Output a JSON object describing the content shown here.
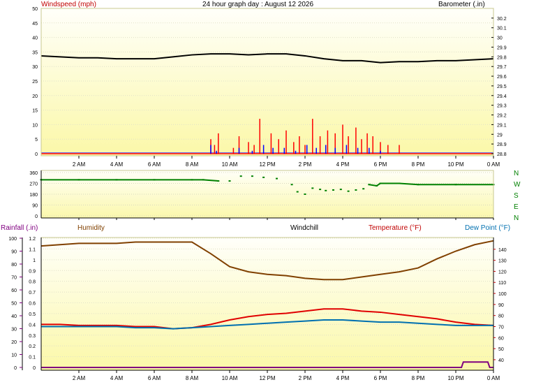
{
  "chart_data": [
    {
      "type": "line",
      "title": "24 hour graph day : August 12 2026",
      "ylabel": "Windspeed (mph)",
      "y2label": "Barometer (.in)",
      "ylim": [
        0,
        50
      ],
      "y2lim": [
        28.8,
        30.3
      ],
      "yticks": [
        "0",
        "5",
        "10",
        "15",
        "20",
        "25",
        "30",
        "35",
        "40",
        "45",
        "50"
      ],
      "y2ticks": [
        "28.8",
        "28.9",
        "29",
        "29.1",
        "29.2",
        "29.3",
        "29.4",
        "29.5",
        "29.6",
        "29.7",
        "29.8",
        "29.9",
        "30",
        "30.1",
        "30.2"
      ],
      "xticks": [
        "2 AM",
        "4 AM",
        "6 AM",
        "8 AM",
        "10 AM",
        "12 PM",
        "2 PM",
        "4 PM",
        "6 PM",
        "8 PM",
        "10 PM",
        "0 AM"
      ],
      "grid": true,
      "series": [
        {
          "name": "Barometer",
          "color": "#000000",
          "axis": "right",
          "x": [
            0,
            1,
            2,
            3,
            4,
            5,
            6,
            7,
            8,
            9,
            10,
            11,
            12,
            13,
            14,
            15,
            16,
            17,
            18,
            19,
            20,
            21,
            22,
            23,
            24
          ],
          "values": [
            29.81,
            29.8,
            29.79,
            29.79,
            29.78,
            29.78,
            29.78,
            29.8,
            29.82,
            29.83,
            29.83,
            29.82,
            29.83,
            29.83,
            29.81,
            29.78,
            29.76,
            29.76,
            29.74,
            29.75,
            29.75,
            29.76,
            29.76,
            29.77,
            29.78
          ]
        },
        {
          "name": "Wind gust",
          "color": "#ff0000",
          "axis": "left",
          "x": [
            9.0,
            9.2,
            9.4,
            10.2,
            10.5,
            11.0,
            11.3,
            11.6,
            12.2,
            12.6,
            13.0,
            13.4,
            13.7,
            14.0,
            14.4,
            14.8,
            15.2,
            15.6,
            16.0,
            16.3,
            16.7,
            17.0,
            17.3,
            17.6,
            18.0,
            18.4,
            19.0
          ],
          "values": [
            5,
            3,
            7,
            2,
            6,
            4,
            3,
            12,
            7,
            5,
            8,
            4,
            6,
            3,
            12,
            6,
            8,
            7,
            10,
            6,
            9,
            5,
            7,
            6,
            4,
            3,
            3
          ]
        },
        {
          "name": "Wind average",
          "color": "#0000ff",
          "axis": "left",
          "x": [
            9.0,
            9.3,
            10.5,
            11.2,
            11.8,
            12.3,
            12.9,
            13.5,
            14.1,
            14.6,
            15.1,
            15.6,
            16.2,
            16.8,
            17.4,
            18.0
          ],
          "values": [
            3,
            1,
            2,
            1,
            3,
            2,
            2,
            1,
            3,
            2,
            3,
            2,
            3,
            2,
            2,
            1
          ]
        }
      ]
    },
    {
      "type": "scatter",
      "ylim": [
        0,
        360
      ],
      "yticks": [
        "0",
        "90",
        "180",
        "270",
        "360"
      ],
      "compass": [
        "N",
        "W",
        "S",
        "E",
        "N"
      ],
      "series": [
        {
          "name": "Wind direction",
          "color": "#008000",
          "x": [
            0,
            2,
            4,
            6,
            8,
            8.6,
            9.4,
            10.0,
            10.6,
            11.2,
            11.8,
            12.5,
            13.3,
            13.6,
            14.0,
            14.4,
            14.8,
            15.1,
            15.5,
            15.9,
            16.3,
            16.7,
            17.1,
            17.4,
            17.8,
            18.0,
            19.0,
            20.0,
            22.0,
            24.0
          ],
          "values": [
            300,
            300,
            300,
            300,
            300,
            300,
            290,
            290,
            330,
            330,
            320,
            310,
            260,
            200,
            180,
            230,
            220,
            210,
            215,
            220,
            205,
            215,
            225,
            260,
            250,
            270,
            270,
            260,
            260,
            260
          ]
        }
      ]
    },
    {
      "type": "line",
      "labels": {
        "rainfall": "Rainfall (.in)",
        "humidity": "Humidity",
        "windchill": "Windchill",
        "temperature": "Temperature (°F)",
        "dewpoint": "Dew Point (°F)"
      },
      "y_humidity_ticks": [
        "0",
        "10",
        "20",
        "30",
        "40",
        "50",
        "60",
        "70",
        "80",
        "90",
        "100"
      ],
      "y_rain_ticks": [
        "0",
        "0.1",
        "0.2",
        "0.3",
        "0.4",
        "0.5",
        "0.6",
        "0.7",
        "0.8",
        "0.9",
        "1",
        "1.1",
        "1.2"
      ],
      "y_temp_ticks": [
        "40",
        "50",
        "60",
        "70",
        "80",
        "90",
        "100",
        "110",
        "120",
        "130",
        "140"
      ],
      "humidity_lim": [
        0,
        100
      ],
      "rain_lim": [
        0,
        1.2
      ],
      "temp_lim": [
        33,
        150
      ],
      "xticks": [
        "2 AM",
        "4 AM",
        "6 AM",
        "8 AM",
        "10 AM",
        "12 PM",
        "2 PM",
        "4 PM",
        "6 PM",
        "8 PM",
        "10 PM",
        "0 AM"
      ],
      "series": [
        {
          "name": "Humidity",
          "color": "#804000",
          "axis": "humidity",
          "x": [
            0,
            1,
            2,
            3,
            4,
            5,
            6,
            7,
            8,
            9,
            10,
            11,
            12,
            13,
            14,
            15,
            16,
            17,
            18,
            19,
            20,
            21,
            22,
            23,
            24
          ],
          "values": [
            94,
            95,
            96,
            96,
            96,
            97,
            97,
            97,
            97,
            88,
            78,
            74,
            72,
            71,
            69,
            68,
            68,
            70,
            72,
            74,
            77,
            84,
            90,
            95,
            98
          ]
        },
        {
          "name": "Temperature",
          "color": "#e00000",
          "axis": "temp",
          "x": [
            0,
            1,
            2,
            3,
            4,
            5,
            6,
            7,
            8,
            9,
            10,
            11,
            12,
            13,
            14,
            15,
            16,
            17,
            18,
            19,
            20,
            21,
            22,
            23,
            24
          ],
          "values": [
            72,
            72,
            71,
            71,
            71,
            70,
            70,
            68,
            69,
            72,
            76,
            79,
            81,
            82,
            84,
            86,
            86,
            84,
            83,
            81,
            79,
            77,
            74,
            72,
            71
          ]
        },
        {
          "name": "Dew Point",
          "color": "#0070b0",
          "axis": "temp",
          "x": [
            0,
            1,
            2,
            3,
            4,
            5,
            6,
            7,
            8,
            9,
            10,
            11,
            12,
            13,
            14,
            15,
            16,
            17,
            18,
            19,
            20,
            21,
            22,
            23,
            24
          ],
          "values": [
            70,
            70,
            70,
            70,
            70,
            69,
            69,
            68,
            69,
            70,
            71,
            72,
            73,
            74,
            75,
            76,
            76,
            75,
            74,
            74,
            73,
            72,
            71,
            71,
            71
          ]
        },
        {
          "name": "Rainfall",
          "color": "#800080",
          "axis": "rain",
          "x": [
            0,
            22.3,
            22.4,
            23.7,
            23.8,
            24
          ],
          "values": [
            0,
            0,
            0.05,
            0.05,
            0,
            0
          ]
        }
      ]
    }
  ]
}
